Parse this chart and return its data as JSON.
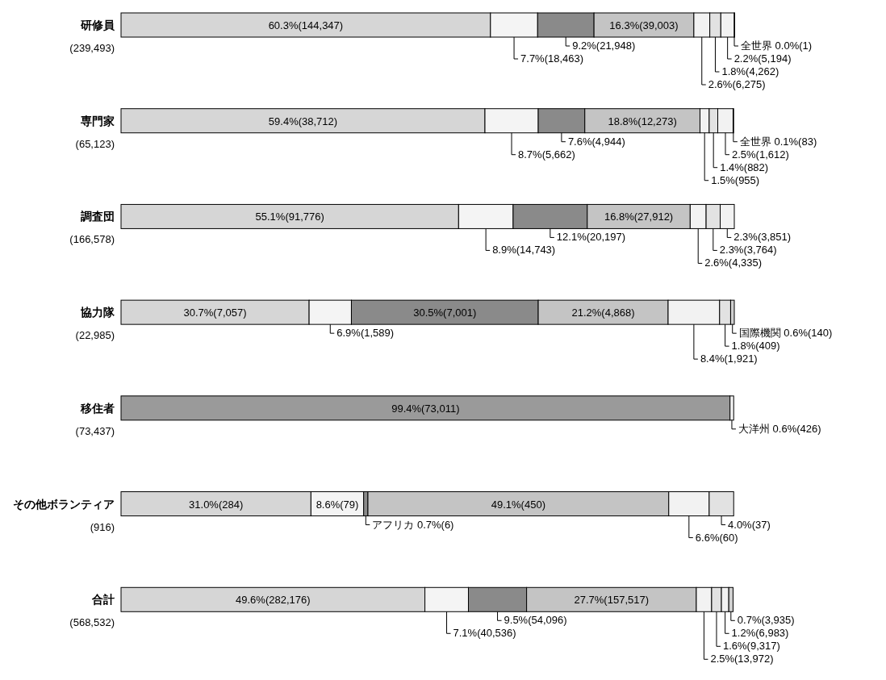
{
  "chart_data": {
    "type": "bar",
    "orientation": "horizontal",
    "stacked": true,
    "categories": [
      "研修員\n(239,493)",
      "専門家\n(65,123)",
      "調査団\n(166,578)",
      "協力隊\n(22,985)",
      "移住者\n(73,437)",
      "その他ボランティア\n(916)",
      "合計\n(568,532)"
    ],
    "series": [
      {
        "color": "#d6d6d6",
        "values": [
          60.3,
          59.4,
          55.1,
          30.7,
          null,
          31.0,
          49.6
        ],
        "value_labels": [
          "60.3%(144,347)",
          "59.4%(38,712)",
          "55.1%(91,776)",
          "30.7%(7,057)",
          null,
          "31.0%(284)",
          "49.6%(282,176)"
        ]
      },
      {
        "color": "#f4f4f4",
        "values": [
          7.7,
          8.7,
          8.9,
          6.9,
          null,
          8.6,
          7.1
        ],
        "value_labels": [
          "7.7%(18,463)",
          "8.7%(5,662)",
          "8.9%(14,743)",
          "6.9%(1,589)",
          null,
          "8.6%(79)",
          "7.1%(40,536)"
        ]
      },
      {
        "color": "#8a8a8a",
        "values": [
          9.2,
          7.6,
          12.1,
          30.5,
          null,
          0.7,
          9.5
        ],
        "value_labels": [
          "9.2%(21,948)",
          "7.6%(4,944)",
          "12.1%(20,197)",
          "30.5%(7,001)",
          null,
          "アフリカ 0.7%(6)",
          "9.5%(54,096)"
        ]
      },
      {
        "colors": [
          "#c4c4c4",
          "#c4c4c4",
          "#c4c4c4",
          "#c4c4c4",
          "#9a9a9a",
          "#c4c4c4",
          "#c4c4c4"
        ],
        "values": [
          16.3,
          18.8,
          16.8,
          21.2,
          99.4,
          49.1,
          27.7
        ],
        "value_labels": [
          "16.3%(39,003)",
          "18.8%(12,273)",
          "16.8%(27,912)",
          "21.2%(4,868)",
          "99.4%(73,011)",
          "49.1%(450)",
          "27.7%(157,517)"
        ]
      },
      {
        "color": "#f2f2f2",
        "values": [
          2.6,
          1.5,
          2.6,
          8.4,
          0.6,
          6.6,
          2.5
        ],
        "value_labels": [
          "2.6%(6,275)",
          "1.5%(955)",
          "2.6%(4,335)",
          "8.4%(1,921)",
          "大洋州 0.6%(426)",
          "6.6%(60)",
          "2.5%(13,972)"
        ]
      },
      {
        "color": "#e2e2e2",
        "values": [
          1.8,
          1.4,
          2.3,
          1.8,
          null,
          4.0,
          1.6
        ],
        "value_labels": [
          "1.8%(4,262)",
          "1.4%(882)",
          "2.3%(3,764)",
          "1.8%(409)",
          null,
          "4.0%(37)",
          "1.6%(9,317)"
        ]
      },
      {
        "color": "#f2f2f2",
        "values": [
          2.2,
          2.5,
          2.3,
          null,
          null,
          null,
          1.2
        ],
        "value_labels": [
          "2.2%(5,194)",
          "2.5%(1,612)",
          "2.3%(3,851)",
          null,
          null,
          null,
          "1.2%(6,983)"
        ]
      },
      {
        "color": "#d0d0d0",
        "values": [
          null,
          null,
          null,
          0.6,
          null,
          null,
          0.7
        ],
        "value_labels": [
          null,
          null,
          null,
          "国際機関 0.6%(140)",
          null,
          null,
          "0.7%(3,935)"
        ]
      },
      {
        "color": "#f6f6f6",
        "values": [
          0.0,
          0.1,
          null,
          null,
          null,
          null,
          null
        ],
        "value_labels": [
          "全世界 0.0%(1)",
          "全世界 0.1%(83)",
          null,
          null,
          null,
          null,
          null
        ]
      }
    ]
  }
}
